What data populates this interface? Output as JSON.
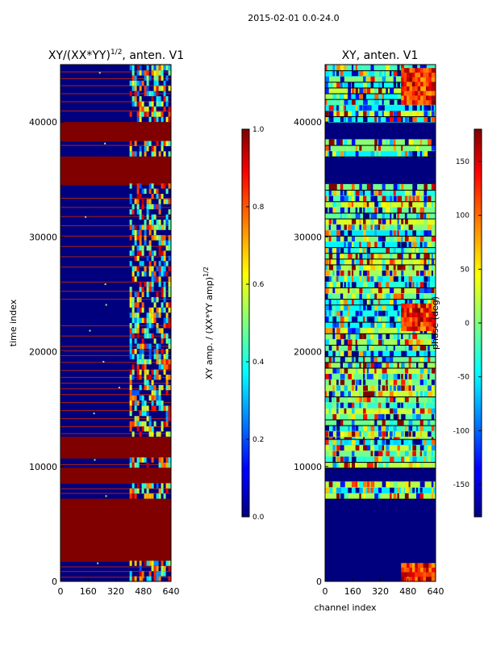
{
  "figure_title": "2015-02-01 0.0-24.0",
  "chart_data": [
    {
      "type": "heatmap",
      "title": "XY/(XX*YY)",
      "title_sup": "1/2",
      "title_suffix": ", anten. V1",
      "xlabel": "",
      "ylabel": "time index",
      "xlim": [
        0,
        640
      ],
      "ylim": [
        0,
        45000
      ],
      "xticks": [
        "0",
        "160",
        "320",
        "480",
        "640"
      ],
      "yticks": [
        "0",
        "10000",
        "20000",
        "30000",
        "40000"
      ],
      "colorbar": {
        "label": "XY amp. / (XX*YY amp)",
        "label_sup": "1/2",
        "range": [
          0.0,
          1.0
        ],
        "ticks": [
          "0.0",
          "0.2",
          "0.4",
          "0.6",
          "0.8",
          "1.0"
        ],
        "colormap": "jet"
      }
    },
    {
      "type": "heatmap",
      "title": "XY, anten. V1",
      "xlabel": "channel index",
      "ylabel": "",
      "xlim": [
        0,
        640
      ],
      "ylim": [
        0,
        45000
      ],
      "xticks": [
        "0",
        "160",
        "320",
        "480",
        "640"
      ],
      "yticks": [
        "0",
        "10000",
        "20000",
        "30000",
        "40000"
      ],
      "colorbar": {
        "label": "phase (deg)",
        "range": [
          -180,
          180
        ],
        "ticks": [
          "-150",
          "-100",
          "-50",
          "0",
          "50",
          "100",
          "150"
        ],
        "colormap": "jet"
      }
    }
  ],
  "colors": {
    "dark_red": "#800000",
    "dark_blue": "#00007f",
    "axis": "#000000"
  }
}
